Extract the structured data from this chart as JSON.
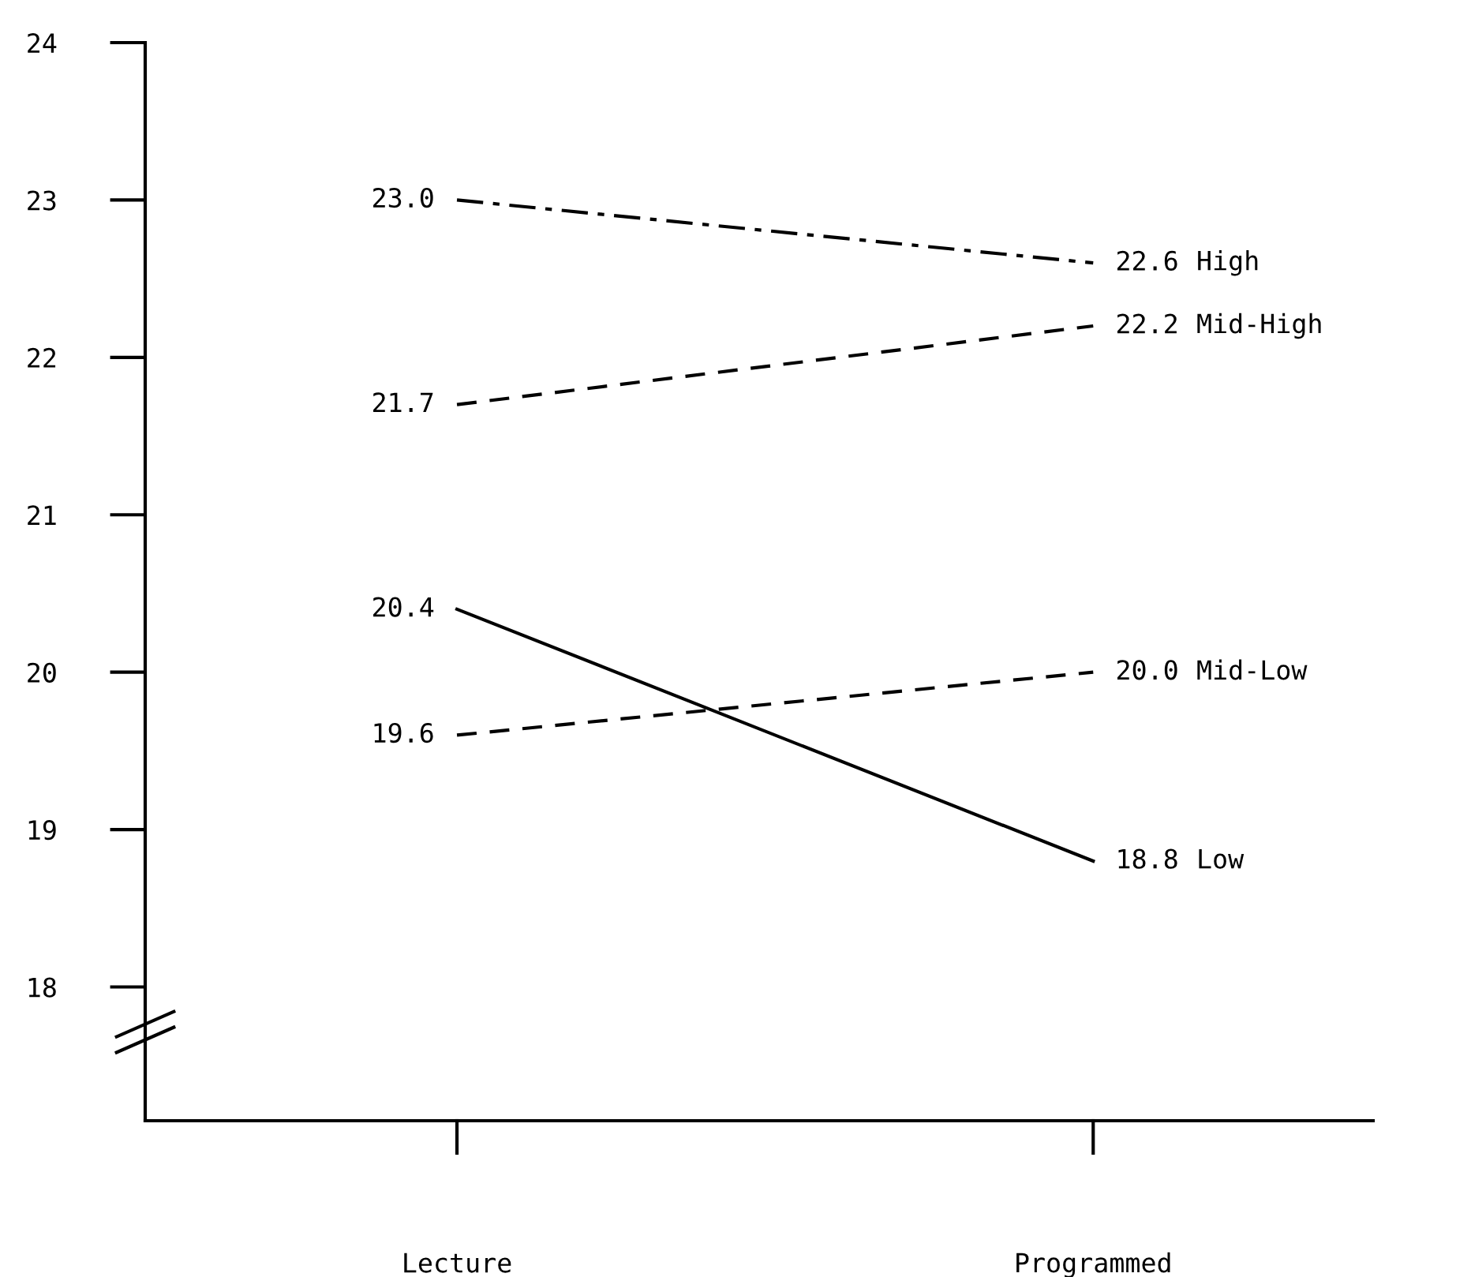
{
  "chart_data": {
    "type": "line",
    "categories": [
      "Lecture",
      "Programmed"
    ],
    "ylim": [
      17.15,
      24
    ],
    "yticks": [
      18,
      19,
      20,
      21,
      22,
      23,
      24
    ],
    "grid": false,
    "legend": false,
    "marker": "none",
    "series": [
      {
        "name": "High",
        "color": "#000000",
        "line_style": "dashdot",
        "values": [
          23.0,
          22.6
        ],
        "value_labels": [
          "23.0",
          "22.6"
        ]
      },
      {
        "name": "Mid-High",
        "color": "#000000",
        "line_style": "dashed",
        "values": [
          21.7,
          22.2
        ],
        "value_labels": [
          "21.7",
          "22.2"
        ]
      },
      {
        "name": "Mid-Low",
        "color": "#000000",
        "line_style": "dashed",
        "values": [
          19.6,
          20.0
        ],
        "value_labels": [
          "19.6",
          "20.0"
        ]
      },
      {
        "name": "Low",
        "color": "#000000",
        "line_style": "solid",
        "values": [
          20.4,
          18.8
        ],
        "value_labels": [
          "20.4",
          "18.8"
        ]
      }
    ]
  }
}
